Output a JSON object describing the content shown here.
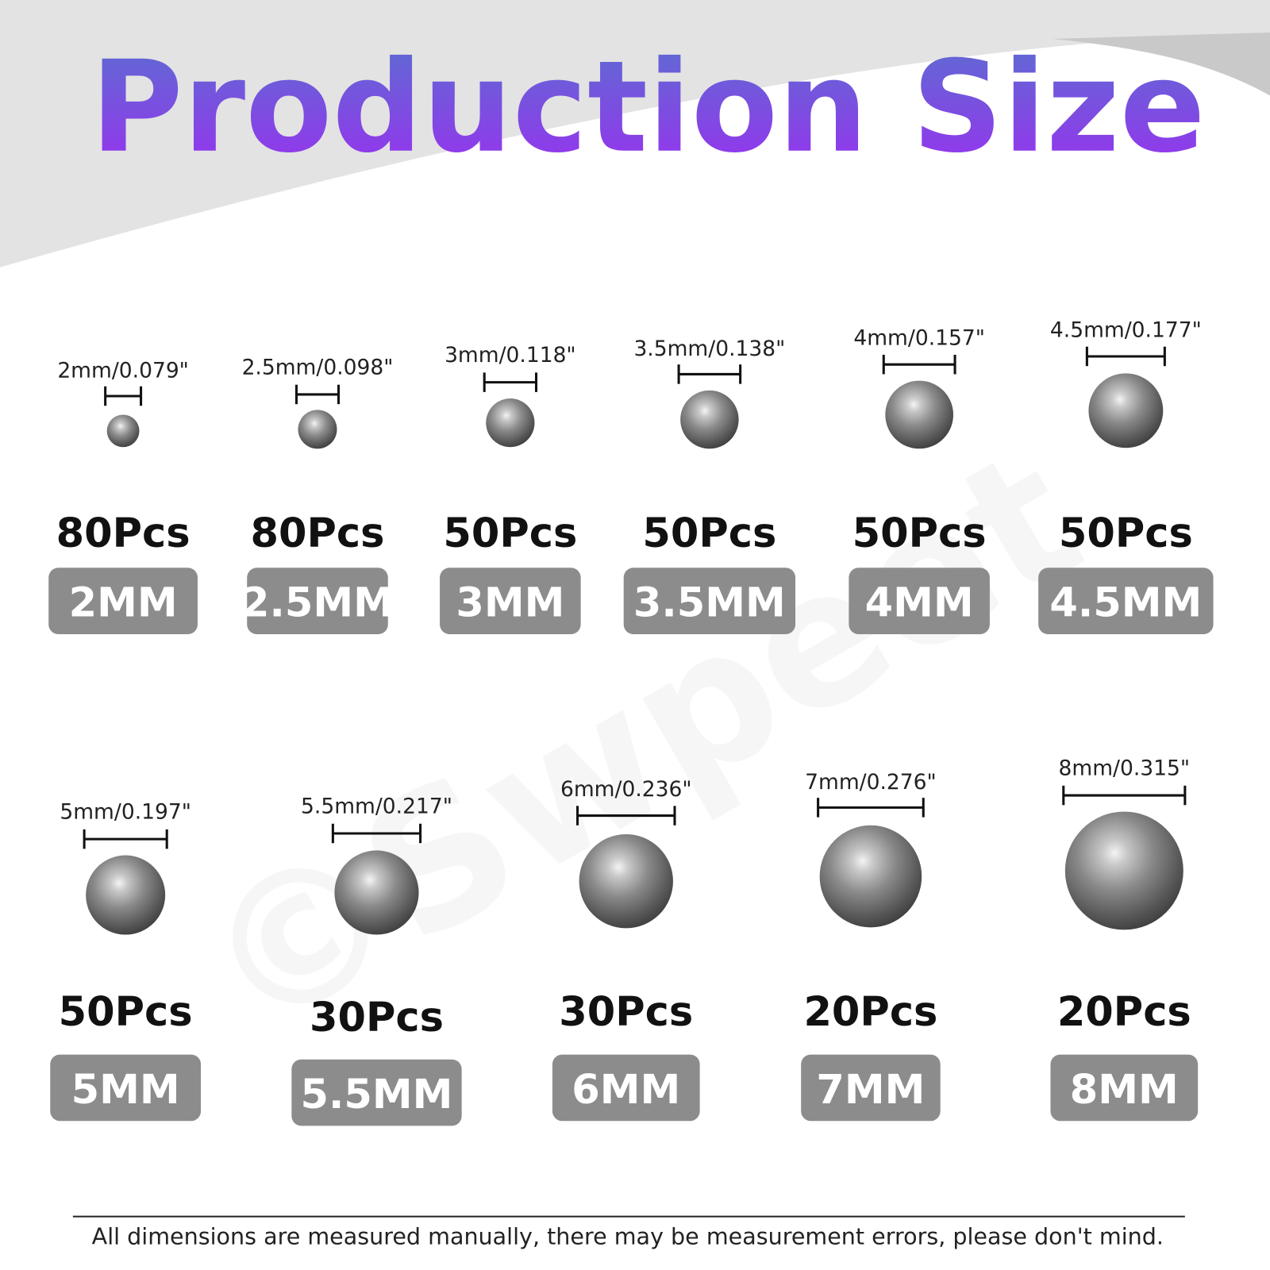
{
  "header": {
    "title": "Production Size"
  },
  "watermark": "©Swpeet",
  "rows": [
    {
      "items": [
        {
          "dimension": "2mm/0.079\"",
          "count": "80Pcs",
          "size": "2MM"
        },
        {
          "dimension": "2.5mm/0.098\"",
          "count": "80Pcs",
          "size": "2.5MM"
        },
        {
          "dimension": "3mm/0.118\"",
          "count": "50Pcs",
          "size": "3MM"
        },
        {
          "dimension": "3.5mm/0.138\"",
          "count": "50Pcs",
          "size": "3.5MM"
        },
        {
          "dimension": "4mm/0.157\"",
          "count": "50Pcs",
          "size": "4MM"
        },
        {
          "dimension": "4.5mm/0.177\"",
          "count": "50Pcs",
          "size": "4.5MM"
        }
      ]
    },
    {
      "items": [
        {
          "dimension": "5mm/0.197\"",
          "count": "50Pcs",
          "size": "5MM"
        },
        {
          "dimension": "5.5mm/0.217\"",
          "count": "30Pcs",
          "size": "5.5MM"
        },
        {
          "dimension": "6mm/0.236\"",
          "count": "30Pcs",
          "size": "6MM"
        },
        {
          "dimension": "7mm/0.276\"",
          "count": "20Pcs",
          "size": "7MM"
        },
        {
          "dimension": "8mm/0.315\"",
          "count": "20Pcs",
          "size": "8MM"
        }
      ]
    }
  ],
  "footer": {
    "note": "All dimensions are measured manually, there may be measurement errors, please don't mind."
  }
}
